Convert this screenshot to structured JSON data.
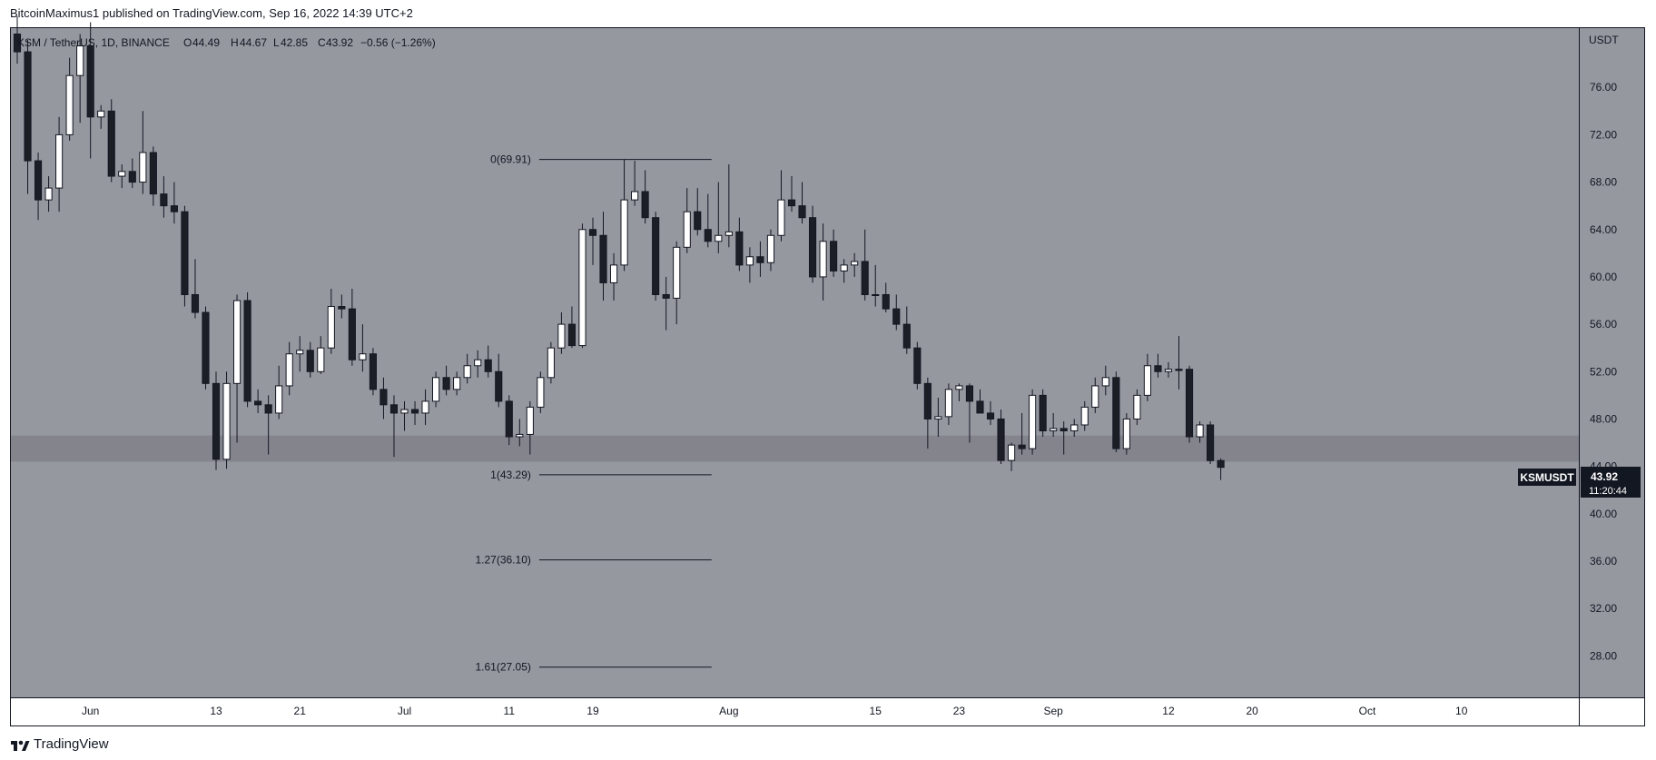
{
  "header": {
    "published_text": "BitcoinMaximus1 published on TradingView.com, Sep 16, 2022 14:39 UTC+2"
  },
  "legend": {
    "symbol": "KSM / TetherUS, 1D, BINANCE",
    "o_label": "O",
    "o_value": "44.49",
    "h_label": "H",
    "h_value": "44.67",
    "l_label": "L",
    "l_value": "42.85",
    "c_label": "C",
    "c_value": "43.92",
    "change": "−0.56 (−1.26%)"
  },
  "price_tag": {
    "symbol": "KSMUSDT",
    "price": "43.92",
    "countdown": "11:20:44"
  },
  "footer": {
    "brand": "TradingView"
  },
  "colors": {
    "chart_background": "#9698a0",
    "up_candle": "#ffffff",
    "down_candle": "#1c1e26",
    "support_zone": "#7c7e85",
    "fib_line": "#131722"
  },
  "chart_data": {
    "type": "candlestick",
    "symbol": "KSMUSDT",
    "interval": "1D",
    "y_unit": "USDT",
    "ylim": [
      24.5,
      81.0
    ],
    "y_ticks": [
      "76.00",
      "72.00",
      "68.00",
      "64.00",
      "60.00",
      "56.00",
      "52.00",
      "48.00",
      "44.00",
      "40.00",
      "36.00",
      "32.00",
      "28.00"
    ],
    "x_range": [
      "2022-05-25",
      "2022-10-20"
    ],
    "x_ticks": [
      {
        "date": "2022-06-01",
        "label": "Jun"
      },
      {
        "date": "2022-06-13",
        "label": "13"
      },
      {
        "date": "2022-06-21",
        "label": "21"
      },
      {
        "date": "2022-07-01",
        "label": "Jul"
      },
      {
        "date": "2022-07-11",
        "label": "11"
      },
      {
        "date": "2022-07-19",
        "label": "19"
      },
      {
        "date": "2022-08-01",
        "label": "Aug"
      },
      {
        "date": "2022-08-15",
        "label": "15"
      },
      {
        "date": "2022-08-23",
        "label": "23"
      },
      {
        "date": "2022-09-01",
        "label": "Sep"
      },
      {
        "date": "2022-09-12",
        "label": "12"
      },
      {
        "date": "2022-09-20",
        "label": "20"
      },
      {
        "date": "2022-10-01",
        "label": "Oct"
      },
      {
        "date": "2022-10-10",
        "label": "10"
      }
    ],
    "support_zone": {
      "low": 44.4,
      "high": 46.6
    },
    "fib_levels": [
      {
        "label": "0(69.91)",
        "value": 69.91
      },
      {
        "label": "1(43.29)",
        "value": 43.29
      },
      {
        "label": "1.27(36.10)",
        "value": 36.1
      },
      {
        "label": "1.61(27.05)",
        "value": 27.05
      }
    ],
    "fib_x_range": [
      "2022-07-15",
      "2022-07-30"
    ],
    "candles": [
      {
        "date": "2022-05-25",
        "o": 80.5,
        "h": 82.0,
        "l": 78.0,
        "c": 79.0
      },
      {
        "date": "2022-05-26",
        "o": 79.0,
        "h": 80.0,
        "l": 67.0,
        "c": 69.8
      },
      {
        "date": "2022-05-27",
        "o": 69.8,
        "h": 70.5,
        "l": 64.8,
        "c": 66.5
      },
      {
        "date": "2022-05-28",
        "o": 66.5,
        "h": 68.5,
        "l": 65.5,
        "c": 67.5
      },
      {
        "date": "2022-05-29",
        "o": 67.5,
        "h": 73.5,
        "l": 65.5,
        "c": 72.0
      },
      {
        "date": "2022-05-30",
        "o": 72.0,
        "h": 78.5,
        "l": 71.5,
        "c": 77.0
      },
      {
        "date": "2022-05-31",
        "o": 77.0,
        "h": 80.5,
        "l": 73.0,
        "c": 79.5
      },
      {
        "date": "2022-06-01",
        "o": 79.5,
        "h": 81.5,
        "l": 70.0,
        "c": 73.5
      },
      {
        "date": "2022-06-02",
        "o": 73.5,
        "h": 74.5,
        "l": 72.5,
        "c": 74.0
      },
      {
        "date": "2022-06-03",
        "o": 74.0,
        "h": 75.0,
        "l": 68.0,
        "c": 68.5
      },
      {
        "date": "2022-06-04",
        "o": 68.5,
        "h": 69.5,
        "l": 67.5,
        "c": 68.9
      },
      {
        "date": "2022-06-05",
        "o": 68.9,
        "h": 70.0,
        "l": 67.5,
        "c": 68.0
      },
      {
        "date": "2022-06-06",
        "o": 68.0,
        "h": 74.0,
        "l": 67.0,
        "c": 70.5
      },
      {
        "date": "2022-06-07",
        "o": 70.5,
        "h": 71.0,
        "l": 66.0,
        "c": 67.0
      },
      {
        "date": "2022-06-08",
        "o": 67.0,
        "h": 68.5,
        "l": 65.0,
        "c": 66.0
      },
      {
        "date": "2022-06-09",
        "o": 66.0,
        "h": 68.0,
        "l": 64.5,
        "c": 65.5
      },
      {
        "date": "2022-06-10",
        "o": 65.5,
        "h": 66.0,
        "l": 57.5,
        "c": 58.5
      },
      {
        "date": "2022-06-11",
        "o": 58.5,
        "h": 61.5,
        "l": 56.5,
        "c": 57.0
      },
      {
        "date": "2022-06-12",
        "o": 57.0,
        "h": 57.5,
        "l": 50.5,
        "c": 51.0
      },
      {
        "date": "2022-06-13",
        "o": 51.0,
        "h": 52.0,
        "l": 43.7,
        "c": 44.6
      },
      {
        "date": "2022-06-14",
        "o": 44.6,
        "h": 52.0,
        "l": 43.8,
        "c": 51.0
      },
      {
        "date": "2022-06-15",
        "o": 51.0,
        "h": 58.5,
        "l": 46.0,
        "c": 58.0
      },
      {
        "date": "2022-06-16",
        "o": 58.0,
        "h": 58.7,
        "l": 49.0,
        "c": 49.5
      },
      {
        "date": "2022-06-17",
        "o": 49.5,
        "h": 50.5,
        "l": 48.5,
        "c": 49.2
      },
      {
        "date": "2022-06-18",
        "o": 49.2,
        "h": 50.0,
        "l": 45.0,
        "c": 48.5
      },
      {
        "date": "2022-06-19",
        "o": 48.5,
        "h": 52.5,
        "l": 48.0,
        "c": 50.8
      },
      {
        "date": "2022-06-20",
        "o": 50.8,
        "h": 54.5,
        "l": 50.0,
        "c": 53.5
      },
      {
        "date": "2022-06-21",
        "o": 53.5,
        "h": 55.0,
        "l": 52.0,
        "c": 53.8
      },
      {
        "date": "2022-06-22",
        "o": 53.8,
        "h": 54.5,
        "l": 51.5,
        "c": 52.0
      },
      {
        "date": "2022-06-23",
        "o": 52.0,
        "h": 55.0,
        "l": 51.8,
        "c": 54.0
      },
      {
        "date": "2022-06-24",
        "o": 54.0,
        "h": 59.0,
        "l": 53.5,
        "c": 57.5
      },
      {
        "date": "2022-06-25",
        "o": 57.5,
        "h": 58.5,
        "l": 56.5,
        "c": 57.3
      },
      {
        "date": "2022-06-26",
        "o": 57.3,
        "h": 59.0,
        "l": 52.5,
        "c": 53.0
      },
      {
        "date": "2022-06-27",
        "o": 53.0,
        "h": 56.0,
        "l": 52.0,
        "c": 53.5
      },
      {
        "date": "2022-06-28",
        "o": 53.5,
        "h": 54.0,
        "l": 50.0,
        "c": 50.5
      },
      {
        "date": "2022-06-29",
        "o": 50.5,
        "h": 51.5,
        "l": 48.0,
        "c": 49.2
      },
      {
        "date": "2022-06-30",
        "o": 49.2,
        "h": 50.0,
        "l": 44.8,
        "c": 48.5
      },
      {
        "date": "2022-07-01",
        "o": 48.5,
        "h": 49.5,
        "l": 47.0,
        "c": 48.8
      },
      {
        "date": "2022-07-02",
        "o": 48.8,
        "h": 49.5,
        "l": 47.5,
        "c": 48.5
      },
      {
        "date": "2022-07-03",
        "o": 48.5,
        "h": 50.5,
        "l": 47.5,
        "c": 49.5
      },
      {
        "date": "2022-07-04",
        "o": 49.5,
        "h": 52.0,
        "l": 49.0,
        "c": 51.5
      },
      {
        "date": "2022-07-05",
        "o": 51.5,
        "h": 52.5,
        "l": 50.0,
        "c": 50.5
      },
      {
        "date": "2022-07-06",
        "o": 50.5,
        "h": 52.0,
        "l": 50.0,
        "c": 51.5
      },
      {
        "date": "2022-07-07",
        "o": 51.5,
        "h": 53.5,
        "l": 51.0,
        "c": 52.5
      },
      {
        "date": "2022-07-08",
        "o": 52.5,
        "h": 53.8,
        "l": 51.5,
        "c": 53.0
      },
      {
        "date": "2022-07-09",
        "o": 53.0,
        "h": 54.2,
        "l": 51.5,
        "c": 52.0
      },
      {
        "date": "2022-07-10",
        "o": 52.0,
        "h": 53.5,
        "l": 49.0,
        "c": 49.5
      },
      {
        "date": "2022-07-11",
        "o": 49.5,
        "h": 50.0,
        "l": 45.8,
        "c": 46.5
      },
      {
        "date": "2022-07-12",
        "o": 46.5,
        "h": 48.0,
        "l": 45.7,
        "c": 46.7
      },
      {
        "date": "2022-07-13",
        "o": 46.7,
        "h": 49.5,
        "l": 45.0,
        "c": 49.0
      },
      {
        "date": "2022-07-14",
        "o": 49.0,
        "h": 52.0,
        "l": 48.5,
        "c": 51.5
      },
      {
        "date": "2022-07-15",
        "o": 51.5,
        "h": 54.5,
        "l": 51.0,
        "c": 54.0
      },
      {
        "date": "2022-07-16",
        "o": 54.0,
        "h": 57.0,
        "l": 53.5,
        "c": 56.0
      },
      {
        "date": "2022-07-17",
        "o": 56.0,
        "h": 57.5,
        "l": 54.0,
        "c": 54.2
      },
      {
        "date": "2022-07-18",
        "o": 54.2,
        "h": 64.5,
        "l": 54.0,
        "c": 64.0
      },
      {
        "date": "2022-07-19",
        "o": 64.0,
        "h": 65.0,
        "l": 61.0,
        "c": 63.5
      },
      {
        "date": "2022-07-20",
        "o": 63.5,
        "h": 65.5,
        "l": 58.0,
        "c": 59.5
      },
      {
        "date": "2022-07-21",
        "o": 59.5,
        "h": 62.0,
        "l": 58.0,
        "c": 61.0
      },
      {
        "date": "2022-07-22",
        "o": 61.0,
        "h": 69.91,
        "l": 60.5,
        "c": 66.5
      },
      {
        "date": "2022-07-23",
        "o": 66.5,
        "h": 69.8,
        "l": 66.0,
        "c": 67.2
      },
      {
        "date": "2022-07-24",
        "o": 67.2,
        "h": 69.0,
        "l": 64.5,
        "c": 65.0
      },
      {
        "date": "2022-07-25",
        "o": 65.0,
        "h": 65.5,
        "l": 58.0,
        "c": 58.5
      },
      {
        "date": "2022-07-26",
        "o": 58.5,
        "h": 60.0,
        "l": 55.5,
        "c": 58.2
      },
      {
        "date": "2022-07-27",
        "o": 58.2,
        "h": 63.0,
        "l": 56.0,
        "c": 62.5
      },
      {
        "date": "2022-07-28",
        "o": 62.5,
        "h": 67.5,
        "l": 62.0,
        "c": 65.5
      },
      {
        "date": "2022-07-29",
        "o": 65.5,
        "h": 67.5,
        "l": 63.5,
        "c": 64.0
      },
      {
        "date": "2022-07-30",
        "o": 64.0,
        "h": 67.0,
        "l": 62.5,
        "c": 63.0
      },
      {
        "date": "2022-07-31",
        "o": 63.0,
        "h": 68.0,
        "l": 62.0,
        "c": 63.5
      },
      {
        "date": "2022-08-01",
        "o": 63.5,
        "h": 69.5,
        "l": 62.5,
        "c": 63.8
      },
      {
        "date": "2022-08-02",
        "o": 63.8,
        "h": 65.0,
        "l": 60.5,
        "c": 61.0
      },
      {
        "date": "2022-08-03",
        "o": 61.0,
        "h": 62.5,
        "l": 59.5,
        "c": 61.7
      },
      {
        "date": "2022-08-04",
        "o": 61.7,
        "h": 63.0,
        "l": 60.0,
        "c": 61.2
      },
      {
        "date": "2022-08-05",
        "o": 61.2,
        "h": 64.0,
        "l": 60.5,
        "c": 63.5
      },
      {
        "date": "2022-08-06",
        "o": 63.5,
        "h": 69.0,
        "l": 63.0,
        "c": 66.5
      },
      {
        "date": "2022-08-07",
        "o": 66.5,
        "h": 68.5,
        "l": 65.5,
        "c": 66.0
      },
      {
        "date": "2022-08-08",
        "o": 66.0,
        "h": 68.0,
        "l": 64.5,
        "c": 65.0
      },
      {
        "date": "2022-08-09",
        "o": 65.0,
        "h": 66.0,
        "l": 59.5,
        "c": 60.0
      },
      {
        "date": "2022-08-10",
        "o": 60.0,
        "h": 64.5,
        "l": 58.0,
        "c": 63.0
      },
      {
        "date": "2022-08-11",
        "o": 63.0,
        "h": 64.0,
        "l": 60.0,
        "c": 60.5
      },
      {
        "date": "2022-08-12",
        "o": 60.5,
        "h": 61.5,
        "l": 59.5,
        "c": 61.0
      },
      {
        "date": "2022-08-13",
        "o": 61.0,
        "h": 62.0,
        "l": 60.0,
        "c": 61.3
      },
      {
        "date": "2022-08-14",
        "o": 61.3,
        "h": 64.0,
        "l": 58.0,
        "c": 58.5
      },
      {
        "date": "2022-08-15",
        "o": 58.5,
        "h": 61.0,
        "l": 57.5,
        "c": 58.5
      },
      {
        "date": "2022-08-16",
        "o": 58.5,
        "h": 59.5,
        "l": 57.0,
        "c": 57.3
      },
      {
        "date": "2022-08-17",
        "o": 57.3,
        "h": 58.5,
        "l": 55.5,
        "c": 56.0
      },
      {
        "date": "2022-08-18",
        "o": 56.0,
        "h": 57.5,
        "l": 53.5,
        "c": 54.0
      },
      {
        "date": "2022-08-19",
        "o": 54.0,
        "h": 54.5,
        "l": 50.5,
        "c": 51.0
      },
      {
        "date": "2022-08-20",
        "o": 51.0,
        "h": 51.5,
        "l": 45.5,
        "c": 48.0
      },
      {
        "date": "2022-08-21",
        "o": 48.0,
        "h": 49.8,
        "l": 46.5,
        "c": 48.2
      },
      {
        "date": "2022-08-22",
        "o": 48.2,
        "h": 51.0,
        "l": 47.5,
        "c": 50.5
      },
      {
        "date": "2022-08-23",
        "o": 50.5,
        "h": 51.0,
        "l": 49.5,
        "c": 50.8
      },
      {
        "date": "2022-08-24",
        "o": 50.8,
        "h": 51.0,
        "l": 46.0,
        "c": 49.5
      },
      {
        "date": "2022-08-25",
        "o": 49.5,
        "h": 50.5,
        "l": 48.5,
        "c": 48.5
      },
      {
        "date": "2022-08-26",
        "o": 48.5,
        "h": 49.5,
        "l": 47.5,
        "c": 48.0
      },
      {
        "date": "2022-08-27",
        "o": 48.0,
        "h": 48.8,
        "l": 44.2,
        "c": 44.5
      },
      {
        "date": "2022-08-28",
        "o": 44.5,
        "h": 46.0,
        "l": 43.6,
        "c": 45.8
      },
      {
        "date": "2022-08-29",
        "o": 45.8,
        "h": 48.5,
        "l": 45.0,
        "c": 45.5
      },
      {
        "date": "2022-08-30",
        "o": 45.5,
        "h": 50.5,
        "l": 45.0,
        "c": 50.0
      },
      {
        "date": "2022-08-31",
        "o": 50.0,
        "h": 50.5,
        "l": 46.5,
        "c": 47.0
      },
      {
        "date": "2022-09-01",
        "o": 47.0,
        "h": 48.5,
        "l": 46.5,
        "c": 47.2
      },
      {
        "date": "2022-09-02",
        "o": 47.2,
        "h": 47.8,
        "l": 45.0,
        "c": 47.0
      },
      {
        "date": "2022-09-03",
        "o": 47.0,
        "h": 48.0,
        "l": 46.5,
        "c": 47.5
      },
      {
        "date": "2022-09-04",
        "o": 47.5,
        "h": 49.5,
        "l": 47.0,
        "c": 49.0
      },
      {
        "date": "2022-09-05",
        "o": 49.0,
        "h": 51.5,
        "l": 48.5,
        "c": 50.8
      },
      {
        "date": "2022-09-06",
        "o": 50.8,
        "h": 52.5,
        "l": 50.0,
        "c": 51.5
      },
      {
        "date": "2022-09-07",
        "o": 51.5,
        "h": 52.0,
        "l": 45.2,
        "c": 45.5
      },
      {
        "date": "2022-09-08",
        "o": 45.5,
        "h": 48.5,
        "l": 45.0,
        "c": 48.0
      },
      {
        "date": "2022-09-09",
        "o": 48.0,
        "h": 50.5,
        "l": 47.5,
        "c": 50.0
      },
      {
        "date": "2022-09-10",
        "o": 50.0,
        "h": 53.5,
        "l": 49.5,
        "c": 52.5
      },
      {
        "date": "2022-09-11",
        "o": 52.5,
        "h": 53.5,
        "l": 51.5,
        "c": 52.0
      },
      {
        "date": "2022-09-12",
        "o": 52.0,
        "h": 52.8,
        "l": 51.5,
        "c": 52.2
      },
      {
        "date": "2022-09-13",
        "o": 52.2,
        "h": 55.0,
        "l": 50.5,
        "c": 52.1
      },
      {
        "date": "2022-09-14",
        "o": 52.2,
        "h": 52.5,
        "l": 46.0,
        "c": 46.5
      },
      {
        "date": "2022-09-15",
        "o": 46.5,
        "h": 47.8,
        "l": 46.0,
        "c": 47.5
      },
      {
        "date": "2022-09-16",
        "o": 47.5,
        "h": 47.8,
        "l": 44.2,
        "c": 44.49
      },
      {
        "date": "2022-09-17",
        "o": 44.49,
        "h": 44.67,
        "l": 42.85,
        "c": 43.92
      }
    ]
  }
}
